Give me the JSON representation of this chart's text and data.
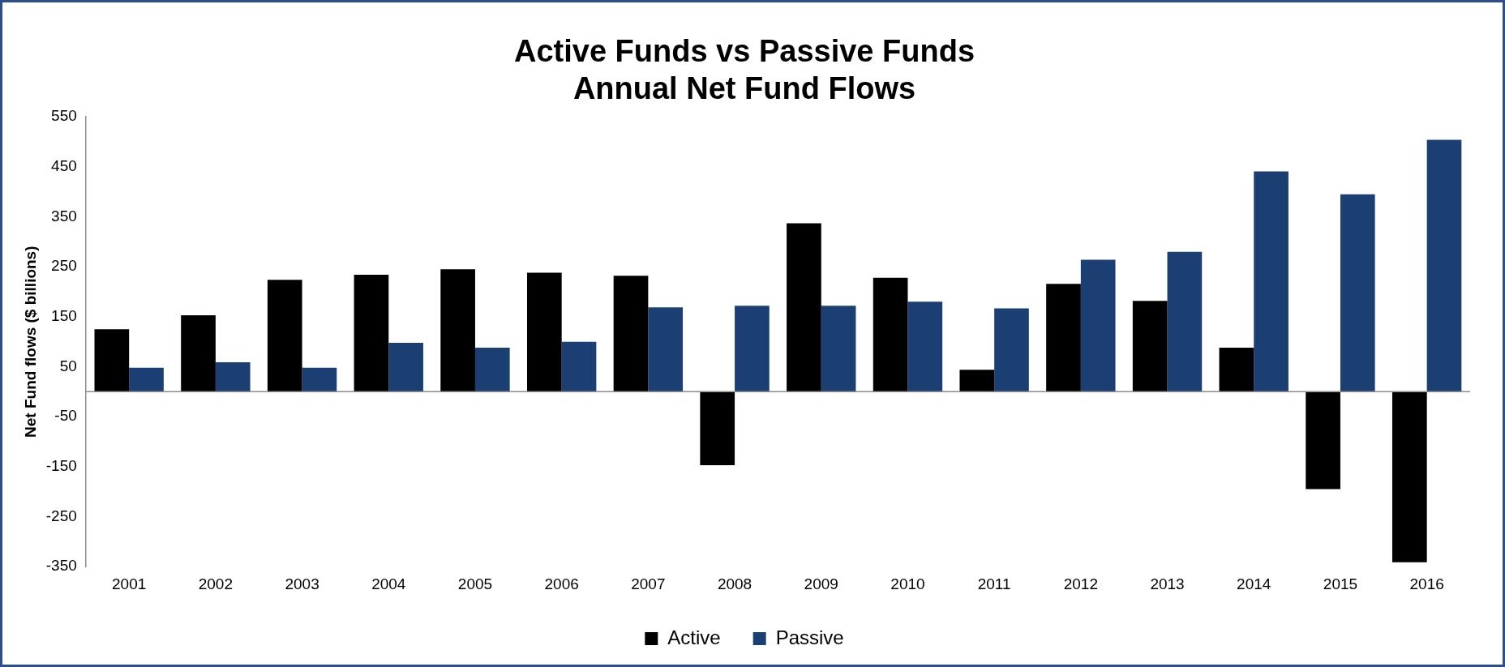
{
  "chart_data": {
    "type": "bar",
    "title": "Active Funds vs Passive Funds",
    "subtitle": "Annual Net Fund Flows",
    "ylabel": "Net Fund flows ($ billions)",
    "categories": [
      "2001",
      "2002",
      "2003",
      "2004",
      "2005",
      "2006",
      "2007",
      "2008",
      "2009",
      "2010",
      "2011",
      "2012",
      "2013",
      "2014",
      "2015",
      "2016"
    ],
    "series": [
      {
        "name": "Active",
        "color": "#000000",
        "values": [
          125,
          153,
          224,
          234,
          245,
          238,
          232,
          -147,
          337,
          228,
          44,
          216,
          182,
          88,
          -195,
          -341
        ]
      },
      {
        "name": "Passive",
        "color": "#1b3f73",
        "values": [
          48,
          59,
          48,
          98,
          88,
          100,
          169,
          172,
          172,
          180,
          167,
          264,
          280,
          441,
          395,
          504
        ]
      }
    ],
    "ylim": [
      -350,
      550
    ],
    "yticks": [
      -350,
      -250,
      -150,
      -50,
      50,
      150,
      250,
      350,
      450,
      550
    ],
    "grid": false,
    "legend": "bottom"
  }
}
